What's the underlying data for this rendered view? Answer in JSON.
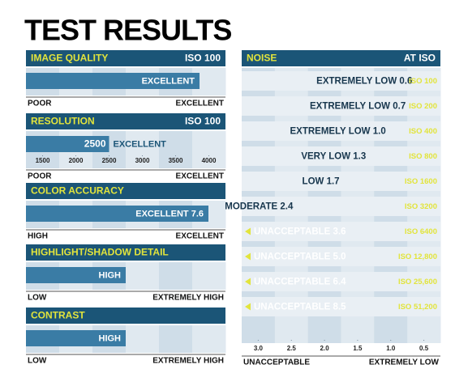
{
  "title": "TEST RESULTS",
  "chart_data": [
    {
      "type": "rating",
      "title": "IMAGE QUALITY",
      "subtitle": "ISO 100",
      "rating": "EXCELLENT",
      "scale_labels": [
        "POOR",
        "EXCELLENT"
      ]
    },
    {
      "type": "bar",
      "title": "RESOLUTION",
      "subtitle": "ISO 100",
      "values": [
        2500
      ],
      "rating": "EXCELLENT",
      "xlim": [
        1250,
        4250
      ],
      "xticks": [
        1500,
        2000,
        2500,
        3000,
        3500,
        4000
      ],
      "scale_labels": [
        "POOR",
        "EXCELLENT"
      ],
      "color": "#3a7ca5"
    },
    {
      "type": "rating",
      "title": "COLOR ACCURACY",
      "rating": "EXCELLENT 7.6",
      "scale_labels": [
        "HIGH",
        "EXCELLENT"
      ]
    },
    {
      "type": "rating",
      "title": "HIGHLIGHT/SHADOW DETAIL",
      "rating": "HIGH",
      "scale_labels": [
        "LOW",
        "EXTREMELY HIGH"
      ]
    },
    {
      "type": "rating",
      "title": "CONTRAST",
      "rating": "HIGH",
      "scale_labels": [
        "LOW",
        "EXTREMELY HIGH"
      ]
    },
    {
      "type": "noise",
      "title": "NOISE",
      "subtitle": "AT ISO",
      "categories": [
        "ISO 100",
        "ISO 200",
        "ISO 400",
        "ISO 800",
        "ISO 1600",
        "ISO 3200",
        "ISO 6400",
        "ISO 12,800",
        "ISO 25,600",
        "ISO 51,200"
      ],
      "ratings": [
        "EXTREMELY LOW",
        "EXTREMELY LOW",
        "EXTREMELY LOW",
        "VERY LOW",
        "LOW",
        "MODERATE",
        "UNACCEPTABLE",
        "UNACCEPTABLE",
        "UNACCEPTABLE",
        "UNACCEPTABLE"
      ],
      "values": [
        0.6,
        0.7,
        1.0,
        1.3,
        1.7,
        2.4,
        3.6,
        5.0,
        6.4,
        8.5
      ],
      "value_labels": [
        "0.6",
        "0.7",
        "1.0",
        "1.3",
        "1.7",
        "2.4",
        "3.6",
        "5.0",
        "6.4",
        "8.5"
      ],
      "xlim": [
        3.25,
        0.25
      ],
      "xticks": [
        {
          "value": 3,
          "label": "3.0"
        },
        2.5,
        {
          "value": 2,
          "label": "2.0"
        },
        1.5,
        {
          "value": 1,
          "label": "1.0"
        },
        0.5
      ],
      "scale_labels": [
        "UNACCEPTABLE",
        "EXTREMELY LOW"
      ],
      "color": "#3a7ca5"
    }
  ]
}
